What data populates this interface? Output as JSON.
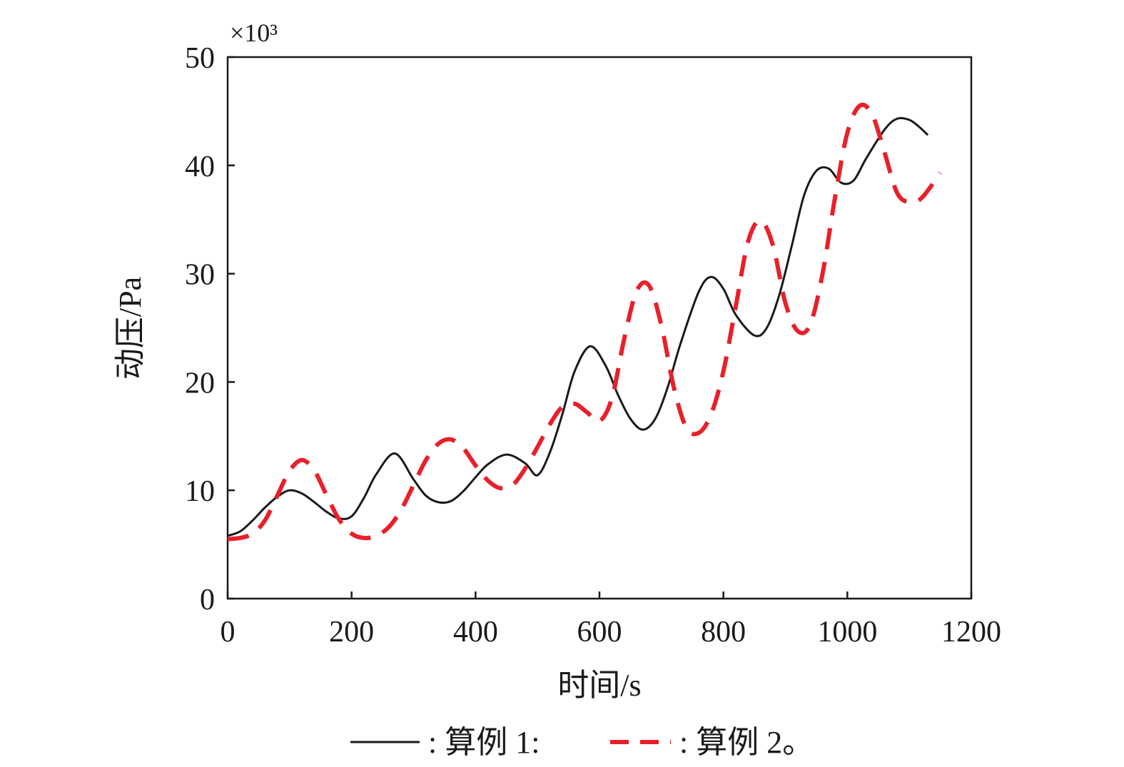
{
  "chart_data": {
    "type": "line",
    "title": "",
    "xlabel": "时间/s",
    "ylabel": "动压/Pa",
    "y_scale_note": "×10³",
    "xlim": [
      0,
      1200
    ],
    "ylim": [
      0,
      50
    ],
    "x_ticks": [
      0,
      200,
      400,
      600,
      800,
      1000,
      1200
    ],
    "y_ticks": [
      0,
      10,
      20,
      30,
      40,
      50
    ],
    "grid": false,
    "legend_position": "bottom",
    "series": [
      {
        "name": "算例 1:",
        "legend_label": ": 算例 1:",
        "color": "#1a1a1a",
        "dash": "solid",
        "x": [
          0,
          20,
          40,
          60,
          80,
          100,
          120,
          140,
          160,
          180,
          200,
          220,
          240,
          270,
          300,
          320,
          340,
          360,
          380,
          400,
          420,
          450,
          480,
          500,
          520,
          540,
          560,
          585,
          610,
          630,
          650,
          670,
          690,
          710,
          730,
          760,
          780,
          800,
          820,
          850,
          870,
          890,
          910,
          930,
          950,
          970,
          990,
          1010,
          1030,
          1060,
          1080,
          1100,
          1115,
          1130
        ],
        "y": [
          5.8,
          6.2,
          7.2,
          8.4,
          9.4,
          10.0,
          9.7,
          8.9,
          8.0,
          7.4,
          7.6,
          9.3,
          11.5,
          13.4,
          11.0,
          9.5,
          8.9,
          9.0,
          9.9,
          11.2,
          12.4,
          13.3,
          12.5,
          11.4,
          13.5,
          17.0,
          21.0,
          23.3,
          21.5,
          18.8,
          16.6,
          15.6,
          16.6,
          19.5,
          23.4,
          28.3,
          29.7,
          28.6,
          26.2,
          24.3,
          25.0,
          28.0,
          32.5,
          37.2,
          39.5,
          39.7,
          38.4,
          38.6,
          40.6,
          43.3,
          44.3,
          44.2,
          43.6,
          42.8
        ]
      },
      {
        "name": "算例 2。",
        "legend_label": ": 算例 2。",
        "color": "#e8202a",
        "dash": "dashed",
        "x": [
          0,
          20,
          40,
          60,
          80,
          100,
          120,
          140,
          160,
          180,
          200,
          220,
          240,
          260,
          280,
          300,
          320,
          340,
          360,
          380,
          400,
          420,
          440,
          460,
          480,
          500,
          520,
          540,
          560,
          580,
          600,
          620,
          640,
          660,
          680,
          700,
          720,
          740,
          760,
          780,
          800,
          820,
          840,
          860,
          880,
          900,
          920,
          940,
          960,
          980,
          1000,
          1020,
          1040,
          1060,
          1080,
          1100,
          1120,
          1150
        ],
        "y": [
          5.5,
          5.6,
          6.0,
          7.2,
          9.5,
          11.8,
          12.8,
          11.8,
          9.5,
          7.3,
          6.0,
          5.6,
          5.8,
          6.6,
          8.2,
          10.5,
          12.8,
          14.3,
          14.7,
          13.9,
          12.3,
          10.9,
          10.2,
          10.5,
          12.0,
          14.0,
          16.1,
          17.7,
          18.0,
          17.2,
          16.4,
          18.5,
          24.0,
          28.4,
          28.9,
          25.2,
          19.5,
          15.8,
          15.3,
          17.0,
          21.0,
          27.0,
          33.0,
          34.9,
          32.6,
          27.3,
          24.7,
          25.3,
          30.0,
          37.0,
          43.0,
          45.5,
          44.7,
          41.2,
          37.5,
          36.6,
          37.0,
          39.3
        ]
      }
    ]
  }
}
